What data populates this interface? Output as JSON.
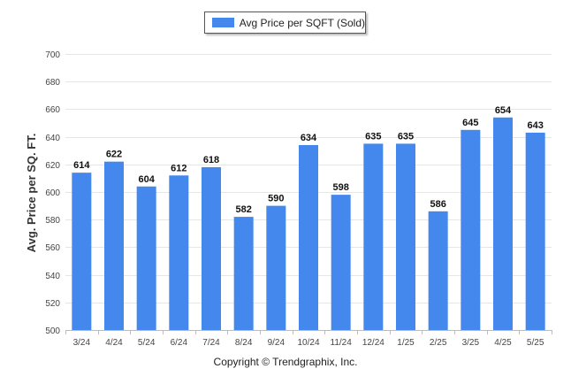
{
  "chart_data": {
    "type": "bar",
    "legend": "Avg Price per SQFT (Sold)",
    "legend_position": "top-center",
    "ylabel": "Avg. Price per SQ. FT.",
    "xlabel": "",
    "ylim": [
      500,
      700
    ],
    "yticks": [
      500,
      520,
      540,
      560,
      580,
      600,
      620,
      640,
      660,
      680,
      700
    ],
    "grid": true,
    "categories": [
      "3/24",
      "4/24",
      "5/24",
      "6/24",
      "7/24",
      "8/24",
      "9/24",
      "10/24",
      "11/24",
      "12/24",
      "1/25",
      "2/25",
      "3/25",
      "4/25",
      "5/25"
    ],
    "values": [
      614,
      622,
      604,
      612,
      618,
      582,
      590,
      634,
      598,
      635,
      635,
      586,
      645,
      654,
      643
    ],
    "bar_color": "#4488ee"
  },
  "footer": {
    "copyright": "Copyright © Trendgraphix, Inc."
  }
}
